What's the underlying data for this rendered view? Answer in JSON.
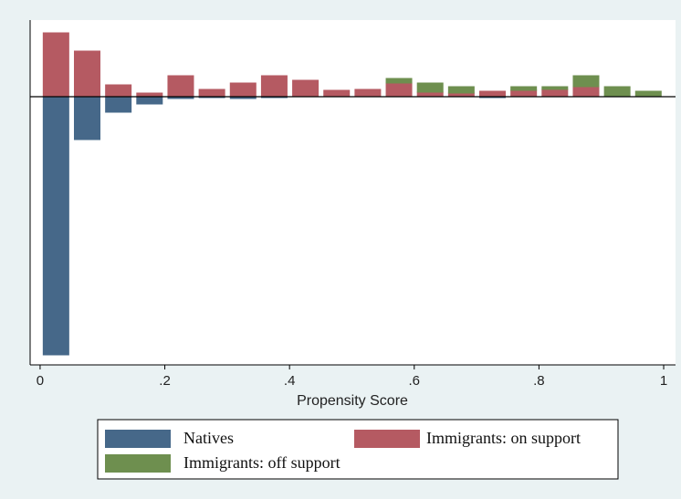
{
  "chart_data": {
    "type": "histogram",
    "x_label": "Propensity Score",
    "bins": [
      0,
      0.05,
      0.1,
      0.15,
      0.2,
      0.25,
      0.3,
      0.35,
      0.4,
      0.45,
      0.5,
      0.55,
      0.6,
      0.65,
      0.7,
      0.75,
      0.8,
      0.85,
      0.9,
      0.95,
      1
    ],
    "xlim": [
      -0.016,
      1.019
    ],
    "xticks": [
      0,
      {
        "value": 0.2,
        "label": ".2"
      },
      {
        "value": 0.4,
        "label": ".4"
      },
      {
        "value": 0.6,
        "label": ".6"
      },
      {
        "value": 0.8,
        "label": ".8"
      },
      1
    ],
    "ylim": [
      -2.94,
      0.84
    ],
    "series": [
      {
        "name": "Natives",
        "color": "#466889",
        "values": [
          -2.83,
          -0.47,
          -0.17,
          -0.08,
          -0.02,
          -0.01,
          -0.02,
          -0.01,
          0,
          0,
          0,
          0,
          0,
          0,
          -0.01,
          0,
          0,
          0,
          0,
          0
        ]
      },
      {
        "name": "Immigrants: on support",
        "color": "#b55a62",
        "values": [
          0.7,
          0.5,
          0.13,
          0.04,
          0.23,
          0.08,
          0.15,
          0.23,
          0.18,
          0.07,
          0.08,
          0.15,
          0.05,
          0.04,
          0.06,
          0.07,
          0.08,
          0.11,
          0,
          0
        ]
      },
      {
        "name": "Immigrants:  off support",
        "color": "#6e8f4f",
        "values": [
          0,
          0,
          0,
          0,
          0,
          0,
          0,
          0,
          0,
          0,
          0,
          0.05,
          0.1,
          0.07,
          0,
          0.04,
          0.03,
          0.12,
          0.11,
          0.06
        ]
      }
    ]
  }
}
